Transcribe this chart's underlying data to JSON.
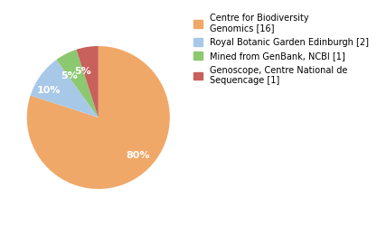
{
  "slices": [
    80,
    10,
    5,
    5
  ],
  "labels": [
    "80%",
    "10%",
    "5%",
    "5%"
  ],
  "colors": [
    "#f0a868",
    "#a8c8e8",
    "#8cc870",
    "#c8605c"
  ],
  "legend_labels": [
    "Centre for Biodiversity\nGenomics [16]",
    "Royal Botanic Garden Edinburgh [2]",
    "Mined from GenBank, NCBI [1]",
    "Genoscope, Centre National de\nSequencage [1]"
  ],
  "legend_fontsize": 7.0,
  "label_fontsize": 8,
  "background_color": "#ffffff",
  "startangle": 90,
  "label_color": "white"
}
